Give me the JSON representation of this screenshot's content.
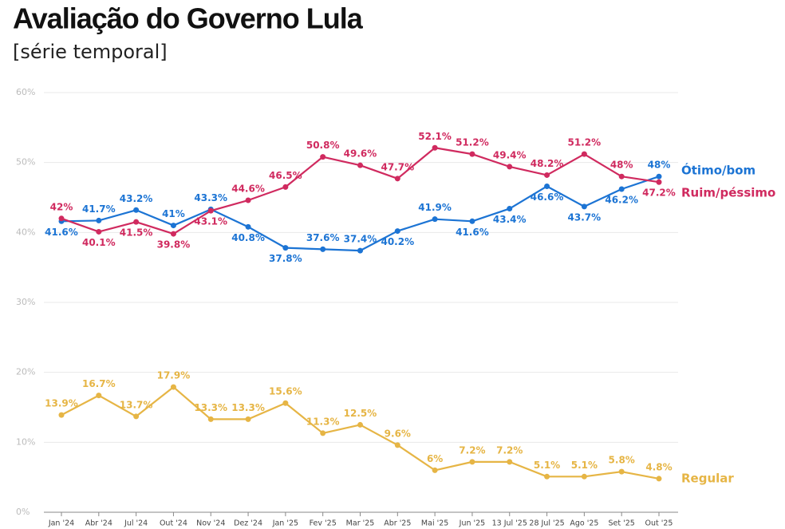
{
  "chart_data": {
    "type": "line",
    "title": "Avaliação do Governo Lula",
    "subtitle": "[série temporal]",
    "categories": [
      "Jan '24",
      "Abr '24",
      "Jul '24",
      "Out '24",
      "Nov '24",
      "Dez '24",
      "Jan '25",
      "Fev '25",
      "Mar '25",
      "Abr '25",
      "Mai '25",
      "Jun '25",
      "13 Jul '25",
      "28 Jul '25",
      "Ago '25",
      "Set '25",
      "Out '25"
    ],
    "series": [
      {
        "name": "Ótimo/bom",
        "color": "#1c74d4",
        "values": [
          41.6,
          41.7,
          43.2,
          41,
          43.3,
          40.8,
          37.8,
          37.6,
          37.4,
          40.2,
          41.9,
          41.6,
          43.4,
          46.6,
          43.7,
          46.2,
          48
        ],
        "value_labels": [
          "41.6%",
          "41.7%",
          "43.2%",
          "41%",
          "43.3%",
          "40.8%",
          "37.8%",
          "37.6%",
          "37.4%",
          "40.2%",
          "41.9%",
          "41.6%",
          "43.4%",
          "46.6%",
          "43.7%",
          "46.2%",
          "48%"
        ]
      },
      {
        "name": "Ruim/péssimo",
        "color": "#d02a5f",
        "values": [
          42,
          40.1,
          41.5,
          39.8,
          43.1,
          44.6,
          46.5,
          50.8,
          49.6,
          47.7,
          52.1,
          51.2,
          49.4,
          48.2,
          51.2,
          48,
          47.2
        ],
        "value_labels": [
          "42%",
          "40.1%",
          "41.5%",
          "39.8%",
          "43.1%",
          "44.6%",
          "46.5%",
          "50.8%",
          "49.6%",
          "47.7%",
          "52.1%",
          "51.2%",
          "49.4%",
          "48.2%",
          "51.2%",
          "48%",
          "47.2%"
        ]
      },
      {
        "name": "Regular",
        "color": "#e6b545",
        "values": [
          13.9,
          16.7,
          13.7,
          17.9,
          13.3,
          13.3,
          15.6,
          11.3,
          12.5,
          9.6,
          6,
          7.2,
          7.2,
          5.1,
          5.1,
          5.8,
          4.8
        ],
        "value_labels": [
          "13.9%",
          "16.7%",
          "13.7%",
          "17.9%",
          "13.3%",
          "13.3%",
          "15.6%",
          "11.3%",
          "12.5%",
          "9.6%",
          "6%",
          "7.2%",
          "7.2%",
          "5.1%",
          "5.1%",
          "5.8%",
          "4.8%"
        ]
      }
    ],
    "ylim": [
      0,
      60
    ],
    "yticks": [
      {
        "value": 0,
        "label": "0%"
      },
      {
        "value": 10,
        "label": "10%"
      },
      {
        "value": 20,
        "label": "20%"
      },
      {
        "value": 30,
        "label": "30%"
      },
      {
        "value": 40,
        "label": "40%"
      },
      {
        "value": 50,
        "label": "50%"
      },
      {
        "value": 60,
        "label": "60%"
      }
    ],
    "grid": true
  }
}
